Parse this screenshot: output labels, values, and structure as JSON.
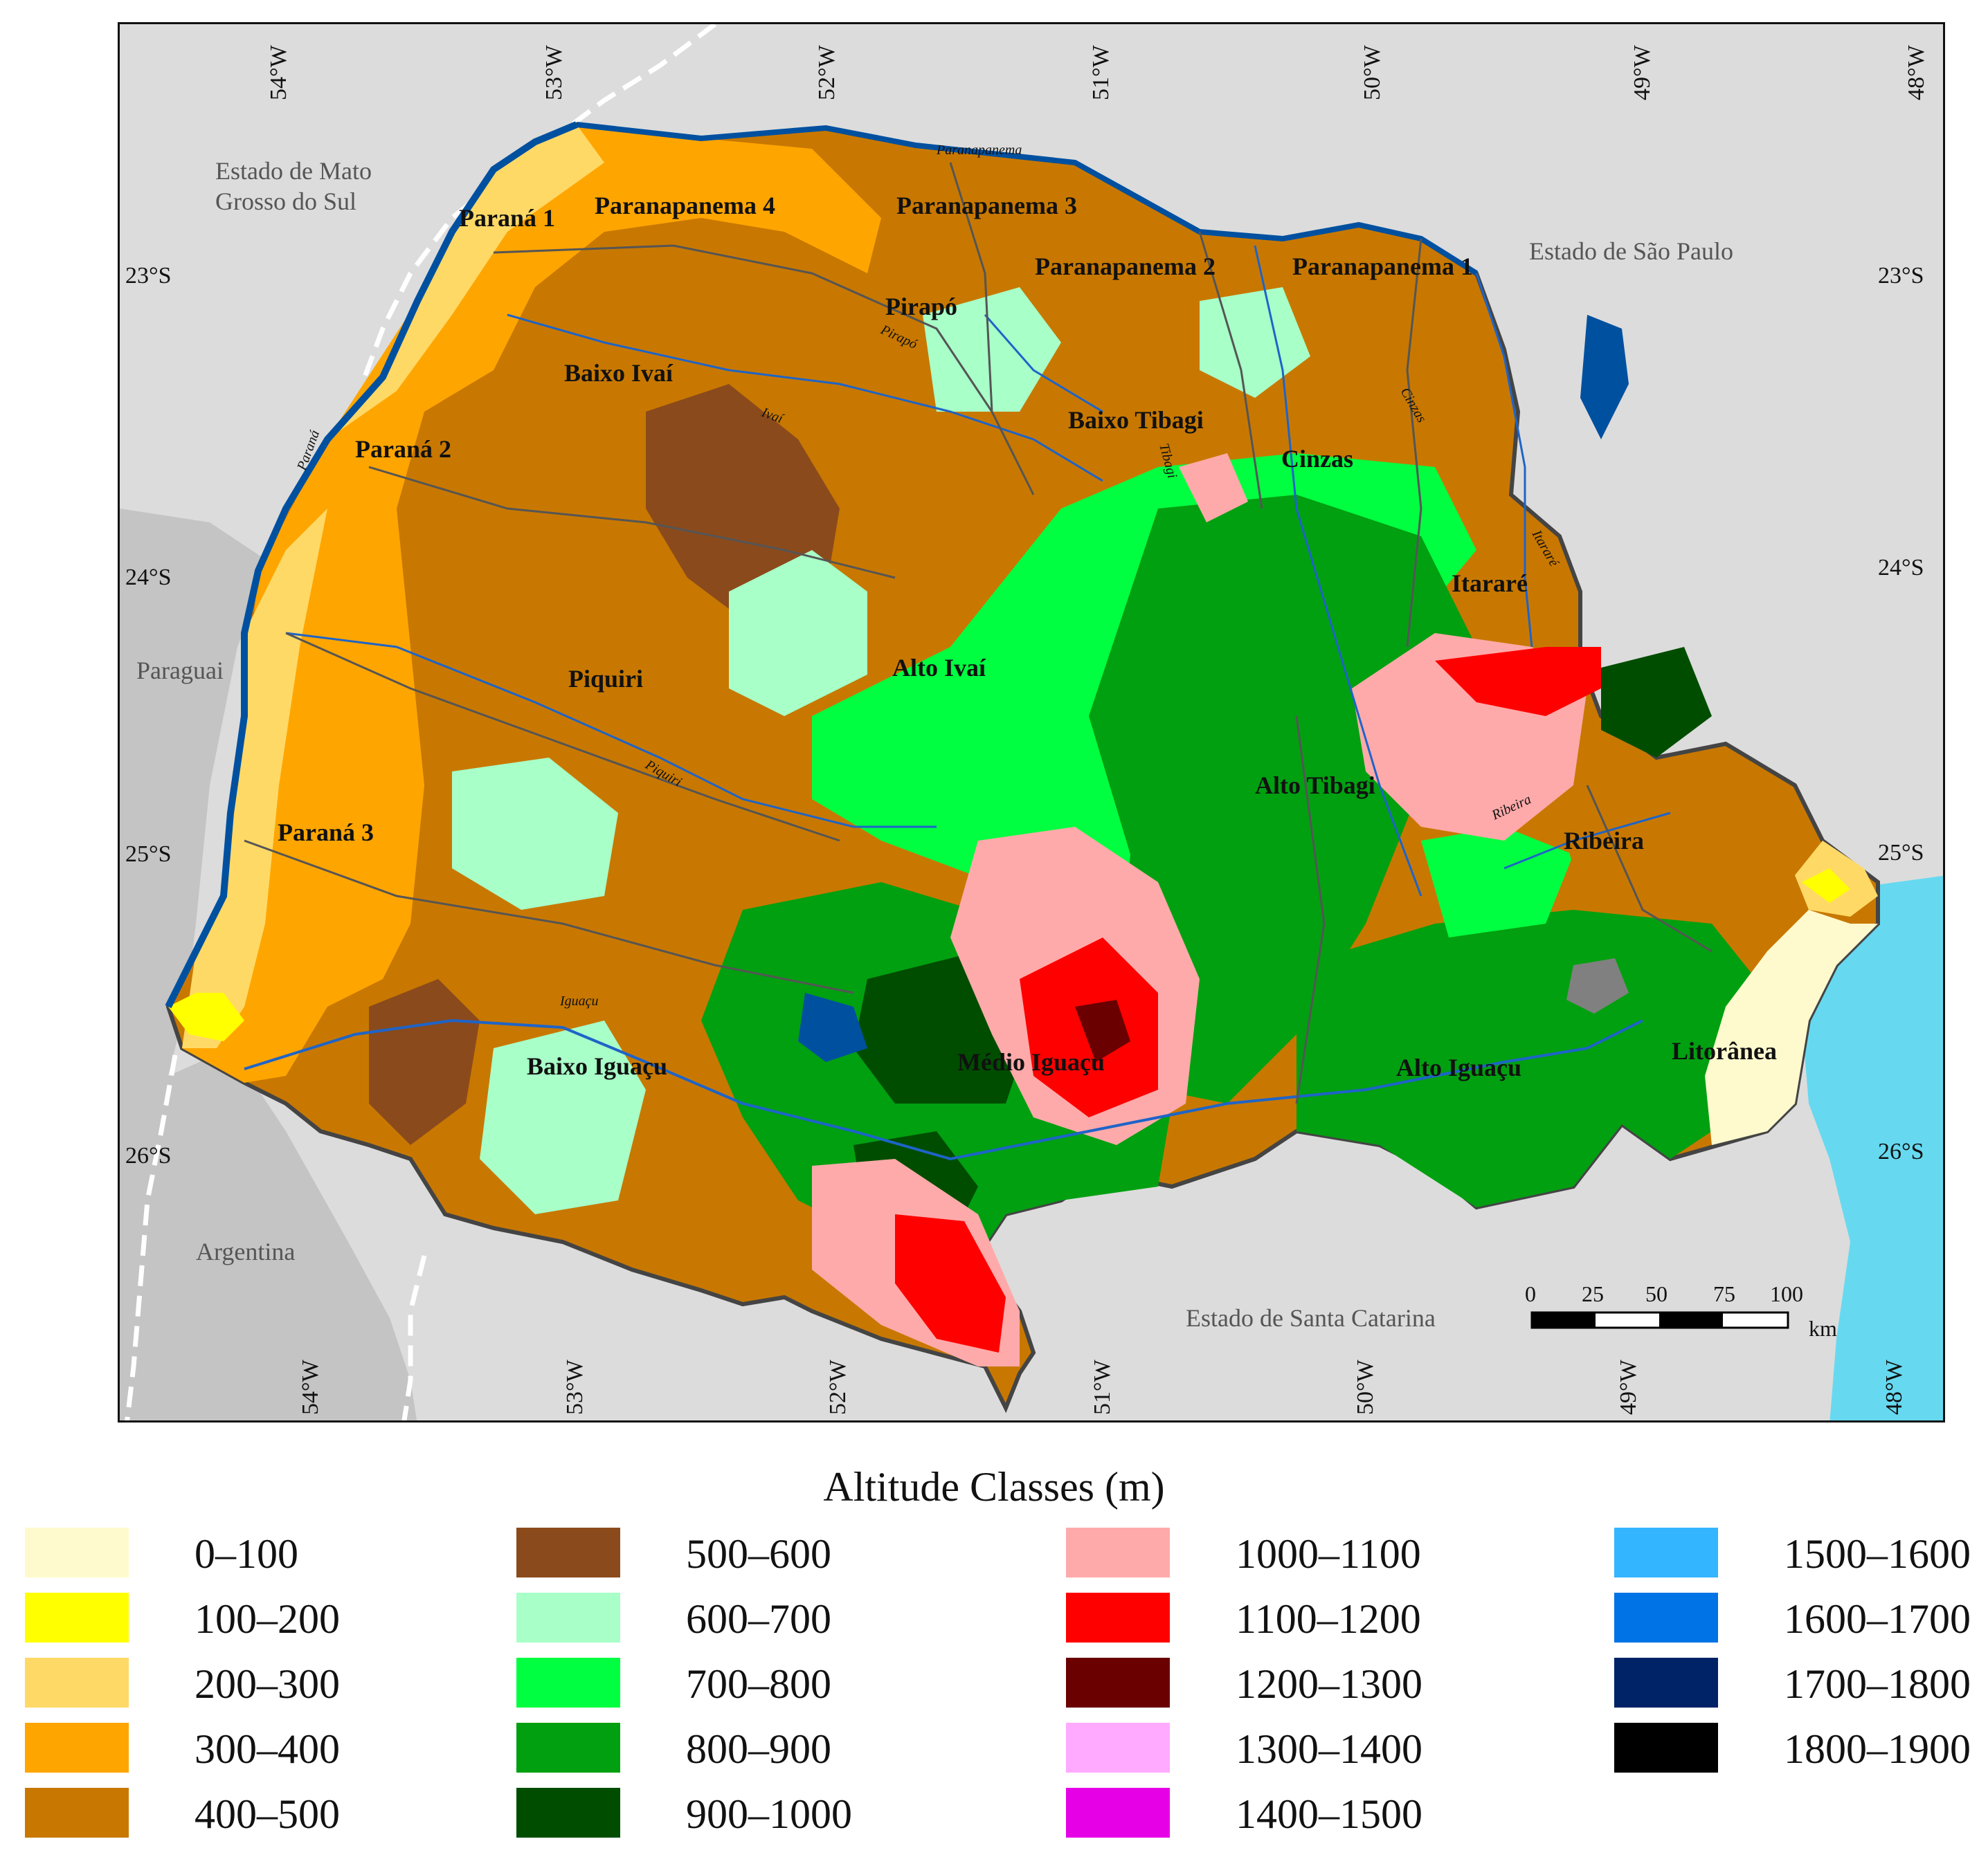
{
  "map": {
    "longitude_labels_top": [
      "54°W",
      "53°W",
      "52°W",
      "51°W",
      "50°W",
      "49°W",
      "48°W"
    ],
    "longitude_labels_bottom": [
      "54°W",
      "53°W",
      "52°W",
      "51°W",
      "50°W",
      "49°W",
      "48°W"
    ],
    "latitude_labels_left": [
      "23°S",
      "24°S",
      "25°S",
      "26°S"
    ],
    "latitude_labels_right": [
      "23°S",
      "24°S",
      "25°S",
      "26°S"
    ],
    "neighbors": {
      "mato_grosso_line1": "Estado de Mato",
      "mato_grosso_line2": "Grosso do Sul",
      "sao_paulo": "Estado de São Paulo",
      "paraguai": "Paraguai",
      "argentina": "Argentina",
      "santa_catarina": "Estado de Santa Catarina"
    },
    "basins": {
      "parana1": "Paraná 1",
      "paranapanema4": "Paranapanema 4",
      "paranapanema3": "Paranapanema 3",
      "paranapanema2": "Paranapanema 2",
      "paranapanema1": "Paranapanema 1",
      "pirapo": "Pirapó",
      "baixo_ivai": "Baixo Ivaí",
      "parana2": "Paraná 2",
      "baixo_tibagi": "Baixo Tibagi",
      "cinzas": "Cinzas",
      "itarare": "Itararé",
      "piquiri": "Piquiri",
      "alto_ivai": "Alto Ivaí",
      "alto_tibagi": "Alto Tibagi",
      "ribeira": "Ribeira",
      "parana3": "Paraná 3",
      "baixo_iguacu": "Baixo Iguaçu",
      "medio_iguacu": "Médio Iguaçu",
      "alto_iguacu": "Alto Iguaçu",
      "litoranea": "Litorânea"
    },
    "rivers": {
      "paranapanema": "Paranapanema",
      "pirapo": "Pirapó",
      "ivai": "Ivaí",
      "parana": "Paraná",
      "cinzas": "Cinzas",
      "tibagi": "Tibagi",
      "itarare": "Itararé",
      "piquiri": "Piquiri",
      "ribeira": "Ribeira",
      "iguacu": "Iguaçu"
    },
    "scale_bar": {
      "ticks": [
        "0",
        "25",
        "50",
        "75",
        "100"
      ],
      "unit": "km"
    }
  },
  "legend": {
    "title": "Altitude Classes (m)",
    "classes": [
      {
        "label": "0–100",
        "color": "#fffacd"
      },
      {
        "label": "100–200",
        "color": "#ffff00"
      },
      {
        "label": "200–300",
        "color": "#ffd966"
      },
      {
        "label": "300–400",
        "color": "#ffa500"
      },
      {
        "label": "400–500",
        "color": "#c87800"
      },
      {
        "label": "500–600",
        "color": "#8b4a1c"
      },
      {
        "label": "600–700",
        "color": "#a8ffc8"
      },
      {
        "label": "700–800",
        "color": "#00ff40"
      },
      {
        "label": "800–900",
        "color": "#00a010"
      },
      {
        "label": "900–1000",
        "color": "#004d00"
      },
      {
        "label": "1000–1100",
        "color": "#ffaaaa"
      },
      {
        "label": "1100–1200",
        "color": "#ff0000"
      },
      {
        "label": "1200–1300",
        "color": "#6b0000"
      },
      {
        "label": "1300–1400",
        "color": "#ffaaff"
      },
      {
        "label": "1400–1500",
        "color": "#e600e6"
      },
      {
        "label": "1500–1600",
        "color": "#33b5ff"
      },
      {
        "label": "1600–1700",
        "color": "#0073e6"
      },
      {
        "label": "1700–1800",
        "color": "#002266"
      },
      {
        "label": "1800–1900",
        "color": "#000000"
      }
    ]
  }
}
